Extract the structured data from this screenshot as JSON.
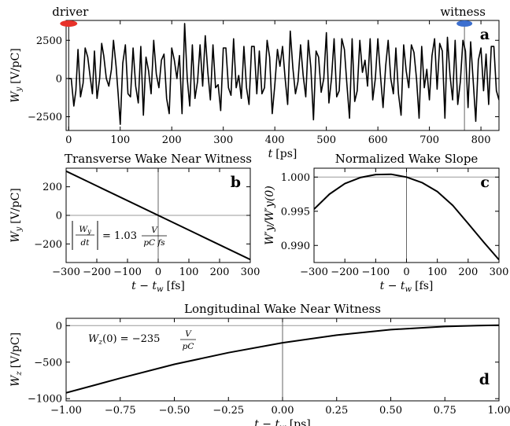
{
  "figure": {
    "bunch_labels": {
      "driver": "driver",
      "witness": "witness"
    },
    "colors": {
      "driver": "#e8322a",
      "witness": "#3c6fcf",
      "curve": "#000000",
      "reference": "#999999",
      "marker": "#555555"
    }
  },
  "chart_data": [
    {
      "id": "a",
      "type": "line",
      "panel_label": "a",
      "title": "",
      "xlabel_main": "t",
      "xlabel_unit": "[ps]",
      "ylabel_main": "W",
      "ylabel_sub": "y",
      "ylabel_unit": "[V/pC]",
      "xlim": [
        -5,
        835
      ],
      "ylim": [
        -3400,
        3800
      ],
      "xticks": [
        0,
        100,
        200,
        300,
        400,
        500,
        600,
        700,
        800
      ],
      "xticklabels": [
        "0",
        "100",
        "200",
        "300",
        "400",
        "500",
        "600",
        "700",
        "800"
      ],
      "yticks": [
        -2500,
        0,
        2500
      ],
      "yticklabels": [
        "−2500",
        "0",
        "2500"
      ],
      "reference_lines": {
        "y": 0,
        "x": 768
      },
      "driver_position": 0,
      "witness_position": 768,
      "series": [
        {
          "x": [
            0,
            5,
            10,
            14,
            18,
            23,
            28,
            32,
            37,
            42,
            46,
            50,
            55,
            60,
            64,
            68,
            73,
            78,
            83,
            87,
            92,
            96,
            100,
            105,
            110,
            115,
            120,
            125,
            130,
            135,
            140,
            145,
            150,
            155,
            160,
            165,
            170,
            175,
            180,
            185,
            190,
            195,
            200,
            205,
            210,
            215,
            220,
            225,
            230,
            235,
            240,
            245,
            250,
            255,
            260,
            265,
            270,
            275,
            280,
            285,
            290,
            295,
            300,
            305,
            310,
            315,
            320,
            325,
            330,
            335,
            340,
            345,
            350,
            355,
            360,
            365,
            370,
            375,
            380,
            385,
            390,
            395,
            400,
            405,
            410,
            415,
            420,
            425,
            430,
            435,
            440,
            445,
            450,
            455,
            460,
            465,
            470,
            475,
            480,
            485,
            490,
            495,
            500,
            505,
            510,
            515,
            520,
            525,
            530,
            535,
            540,
            545,
            550,
            555,
            560,
            565,
            570,
            575,
            580,
            585,
            590,
            595,
            600,
            605,
            610,
            615,
            620,
            625,
            630,
            635,
            640,
            645,
            650,
            655,
            660,
            665,
            670,
            675,
            680,
            685,
            690,
            695,
            700,
            705,
            710,
            715,
            720,
            725,
            730,
            735,
            740,
            745,
            750,
            755,
            760,
            765,
            770,
            775,
            780,
            785,
            790,
            795,
            800,
            805,
            810,
            815,
            820,
            825,
            830,
            835
          ],
          "y": [
            0,
            0,
            -1800,
            -800,
            1900,
            -1200,
            -300,
            2000,
            1400,
            0,
            -1000,
            1800,
            -1300,
            0,
            2300,
            1500,
            0,
            -500,
            600,
            2500,
            800,
            -1000,
            -3000,
            1000,
            2200,
            -1000,
            -1200,
            2000,
            -500,
            -1600,
            2100,
            -2400,
            1400,
            500,
            -1000,
            2500,
            300,
            -600,
            1200,
            1600,
            -1300,
            -2300,
            2000,
            1200,
            0,
            1500,
            -2300,
            3600,
            0,
            -1800,
            2200,
            -1300,
            -200,
            2200,
            -500,
            2800,
            400,
            -1400,
            2200,
            -600,
            -400,
            -2100,
            2000,
            2000,
            -600,
            -1100,
            2600,
            -600,
            200,
            -1300,
            2100,
            -600,
            -1700,
            2100,
            2100,
            -1000,
            1800,
            -1000,
            -600,
            2500,
            1400,
            -2300,
            -400,
            1900,
            800,
            2100,
            0,
            -1700,
            3100,
            700,
            -1000,
            -200,
            2200,
            200,
            -1200,
            2500,
            700,
            -2700,
            1800,
            1400,
            -900,
            0,
            3000,
            -1600,
            0,
            2600,
            -1200,
            -800,
            2600,
            1900,
            -400,
            -2600,
            2600,
            -1500,
            -800,
            2500,
            400,
            1200,
            -500,
            2600,
            -1400,
            0,
            2600,
            200,
            -1900,
            800,
            2500,
            0,
            -1000,
            2000,
            -1000,
            -2400,
            2200,
            500,
            -600,
            2200,
            1700,
            0,
            -2600,
            2100,
            -600,
            600,
            -1400,
            1500,
            2600,
            -700,
            2300,
            1800,
            -2600,
            2700,
            200,
            -1400,
            2500,
            -1700,
            -200,
            2500,
            1800,
            -1900,
            2400,
            -200,
            -2800,
            1200,
            2000,
            -800,
            1600,
            -1700,
            2100,
            2100,
            -800,
            -1400
          ]
        }
      ]
    },
    {
      "id": "b",
      "type": "line",
      "panel_label": "b",
      "title": "Transverse Wake Near Witness",
      "xlabel_main": "t − t",
      "xlabel_sub": "w",
      "xlabel_unit": "[fs]",
      "ylabel_main": "W",
      "ylabel_sub": "y",
      "ylabel_unit": "[V/pC]",
      "xlim": [
        -300,
        300
      ],
      "ylim": [
        -330,
        330
      ],
      "xticks": [
        -300,
        -200,
        -100,
        0,
        100,
        200,
        300
      ],
      "xticklabels": [
        "−300",
        "−200",
        "−100",
        "0",
        "100",
        "200",
        "300"
      ],
      "yticks": [
        -200,
        0,
        200
      ],
      "yticklabels": [
        "−200",
        "0",
        "200"
      ],
      "reference_lines": {
        "y": 0,
        "x": 0
      },
      "annotation": {
        "lhs_num": "W",
        "lhs_num_sub": "y",
        "lhs_den": "dt",
        "equals": "= 1.03",
        "frac_num": "V",
        "frac_den": "pC fs"
      },
      "series": [
        {
          "x": [
            -300,
            300
          ],
          "y": [
            309,
            -309
          ]
        }
      ]
    },
    {
      "id": "c",
      "type": "line",
      "panel_label": "c",
      "title": "Normalized Wake Slope",
      "xlabel_main": "t − t",
      "xlabel_sub": "w",
      "xlabel_unit": "[fs]",
      "ylabel_text": "W′y/W′y(0)",
      "xlim": [
        -300,
        300
      ],
      "ylim": [
        0.9875,
        1.0013
      ],
      "xticks": [
        -300,
        -200,
        -100,
        0,
        100,
        200,
        300
      ],
      "xticklabels": [
        "−300",
        "−200",
        "−100",
        "0",
        "100",
        "200",
        "300"
      ],
      "yticks": [
        0.99,
        0.995,
        1.0
      ],
      "yticklabels": [
        "0.990",
        "0.995",
        "1.000"
      ],
      "reference_lines": {
        "y": 1.0,
        "x": 0
      },
      "series": [
        {
          "x": [
            -300,
            -250,
            -200,
            -150,
            -100,
            -50,
            0,
            50,
            100,
            150,
            200,
            250,
            300
          ],
          "y": [
            0.9953,
            0.9975,
            0.99905,
            0.99993,
            1.00037,
            1.00042,
            1.0,
            0.9992,
            0.99788,
            0.99585,
            0.9932,
            0.9905,
            0.9879
          ]
        }
      ]
    },
    {
      "id": "d",
      "type": "line",
      "panel_label": "d",
      "title": "Longitudinal Wake Near Witness",
      "xlabel_main": "t − t",
      "xlabel_sub": "w",
      "xlabel_unit": "[ps]",
      "ylabel_main": "W",
      "ylabel_sub": "z",
      "ylabel_unit": "[V/pC]",
      "xlim": [
        -1.0,
        1.0
      ],
      "ylim": [
        -1030,
        100
      ],
      "xticks": [
        -1.0,
        -0.75,
        -0.5,
        -0.25,
        0.0,
        0.25,
        0.5,
        0.75,
        1.0
      ],
      "xticklabels": [
        "−1.00",
        "−0.75",
        "−0.50",
        "−0.25",
        "0.00",
        "0.25",
        "0.50",
        "0.75",
        "1.00"
      ],
      "yticks": [
        -1000,
        -500,
        0
      ],
      "yticklabels": [
        "−1000",
        "−500",
        "0"
      ],
      "reference_lines": {
        "y": 0,
        "x": 0
      },
      "annotation": {
        "lhs": "W",
        "lhs_sub": "z",
        "lhs_rest": "(0) = −235",
        "frac_num": "V",
        "frac_den": "pC"
      },
      "series": [
        {
          "x": [
            -1.0,
            -0.75,
            -0.5,
            -0.25,
            0.0,
            0.25,
            0.5,
            0.75,
            0.9,
            1.0
          ],
          "y": [
            -920,
            -720,
            -530,
            -370,
            -235,
            -130,
            -55,
            -12,
            0,
            5
          ]
        }
      ]
    }
  ]
}
